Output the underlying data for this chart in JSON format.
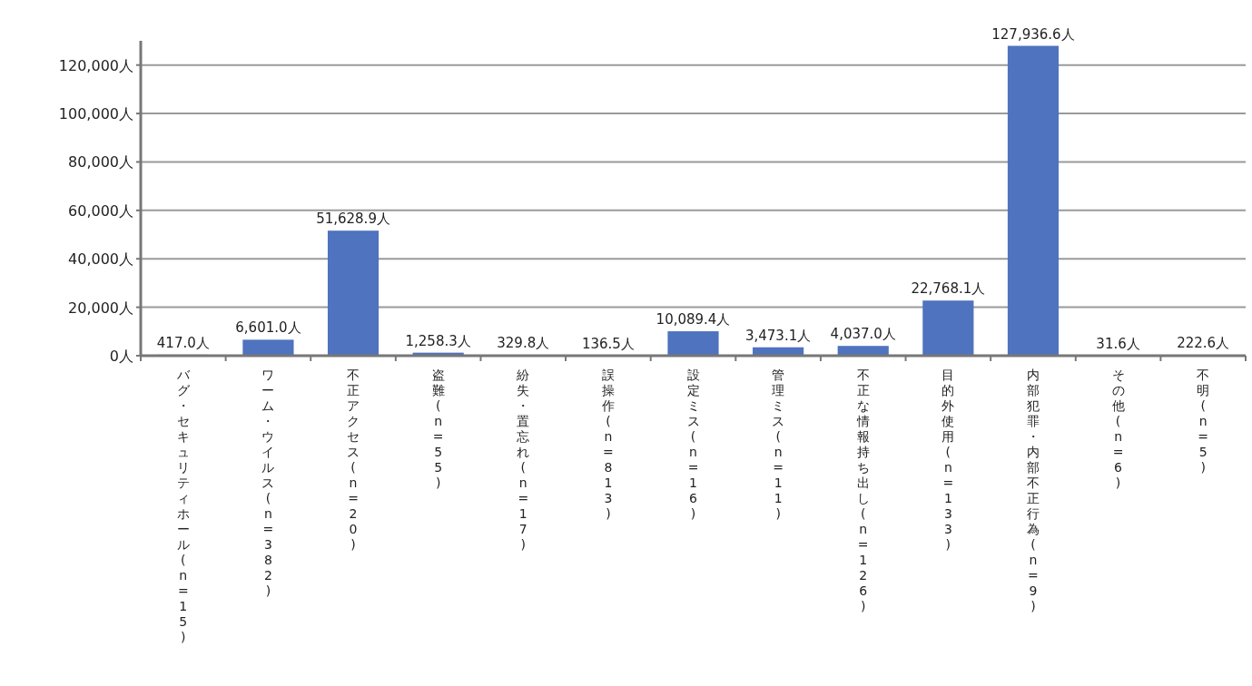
{
  "chart_data": {
    "type": "bar",
    "categories": [
      "バグ・セキュリティホール(n=15)",
      "ワーム・ウイルス(n=382)",
      "不正アクセス(n=20)",
      "盗難(n=55)",
      "紛失・置忘れ(n=17)",
      "誤操作(n=813)",
      "設定ミス(n=16)",
      "管理ミス(n=11)",
      "不正な情報持ち出し(n=126)",
      "目的外使用(n=133)",
      "内部犯罪・内部不正行為(n=9)",
      "その他(n=6)",
      "不明(n=5)"
    ],
    "values": [
      417.0,
      6601.0,
      51628.9,
      1258.3,
      329.8,
      136.5,
      10089.4,
      3473.1,
      4037.0,
      22768.1,
      127936.6,
      31.6,
      222.6
    ],
    "value_labels": [
      "417.0人",
      "6,601.0人",
      "51,628.9人",
      "1,258.3人",
      "329.8人",
      "136.5人",
      "10,089.4人",
      "3,473.1人",
      "4,037.0人",
      "22,768.1人",
      "127,936.6人",
      "31.6人",
      "222.6人"
    ],
    "color": "#4f73be",
    "ylim": [
      0,
      130000
    ],
    "yticks": [
      {
        "value": 0,
        "label": "0人"
      },
      {
        "value": 20000,
        "label": "20,000人"
      },
      {
        "value": 40000,
        "label": "40,000人"
      },
      {
        "value": 60000,
        "label": "60,000人"
      },
      {
        "value": 80000,
        "label": "80,000人"
      },
      {
        "value": 100000,
        "label": "100,000人"
      },
      {
        "value": 120000,
        "label": "120,000人"
      }
    ],
    "grid": "y"
  }
}
